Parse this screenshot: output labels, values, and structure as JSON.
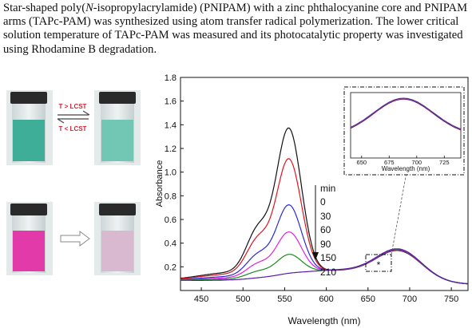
{
  "abstract": {
    "part1": "Star-shaped poly(",
    "italic": "N",
    "part2": "-isopropylacrylamide) (PNIPAM) with a zinc phthalocyanine core and PNIPAM arms (TAPc-PAM) was synthesized using atom transfer radical polymerization. The lower critical solution temperature of TAPc-PAM was measured and its photocatalytic property was investigated using Rhodamine B degradation."
  },
  "photos": {
    "arrow_up_label": "T > LCST",
    "arrow_down_label": "T < LCST",
    "colors": {
      "green_solution": "#3fae99",
      "pink_solution": "#e23aa8",
      "faded_solution": "#d9b9cf",
      "cap": "#2a2a2a",
      "arrow_red": "#d9232e"
    }
  },
  "legend": {
    "title": "min",
    "entries": [
      "0",
      "30",
      "60",
      "90",
      "150",
      "210"
    ]
  },
  "chart_data": {
    "type": "line",
    "xlabel": "Wavelength (nm)",
    "ylabel": "Absorbance",
    "xlim": [
      425,
      770
    ],
    "ylim": [
      0,
      1.8
    ],
    "xticks": [
      450,
      500,
      550,
      600,
      650,
      700,
      750
    ],
    "yticks": [
      0.2,
      0.4,
      0.6,
      0.8,
      1.0,
      1.2,
      1.4,
      1.6,
      1.8
    ],
    "series": [
      {
        "name": "0",
        "color": "#111111",
        "peak": 1.34
      },
      {
        "name": "30",
        "color": "#e0141e",
        "peak": 1.08
      },
      {
        "name": "60",
        "color": "#2a2ad6",
        "peak": 0.69
      },
      {
        "name": "90",
        "color": "#e020e0",
        "peak": 0.46
      },
      {
        "name": "150",
        "color": "#1a8c1a",
        "peak": 0.27
      },
      {
        "name": "210",
        "color": "#5a1aa8",
        "peak": 0.11
      }
    ],
    "pc_band": {
      "center": 688,
      "value": 0.23
    },
    "marker": "*",
    "inset": {
      "xlabel": "Wavelength (nm)",
      "xticks": [
        650,
        675,
        700,
        725
      ],
      "xlim": [
        640,
        740
      ]
    }
  }
}
